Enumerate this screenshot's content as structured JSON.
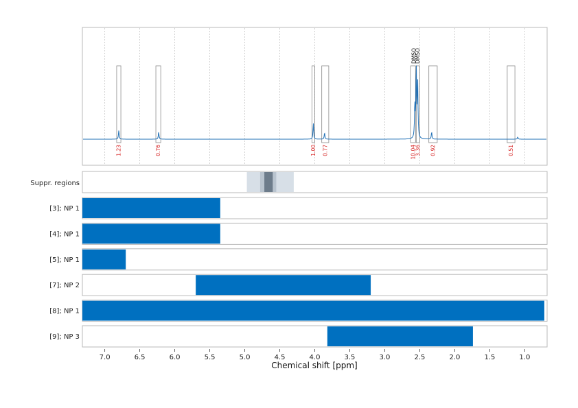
{
  "chart_data": {
    "type": "nmr_spectrum_with_ranges",
    "xlabel": "Chemical shift [ppm]",
    "x_axis": {
      "range": [
        7.32,
        0.68
      ],
      "reversed": true,
      "ticks": [
        7.0,
        6.5,
        6.0,
        5.5,
        5.0,
        4.5,
        4.0,
        3.5,
        3.0,
        2.5,
        2.0,
        1.5,
        1.0
      ],
      "tick_labels": [
        "7.0",
        "6.5",
        "6.0",
        "5.5",
        "5.0",
        "4.5",
        "4.0",
        "3.5",
        "3.0",
        "2.5",
        "2.0",
        "1.5",
        "1.0"
      ]
    },
    "grid": true,
    "colors": {
      "spectrum": "#1f6fb5",
      "range_bar": "#0070c0",
      "integral_label": "#d62020",
      "suppr_light": "#d7dfe7",
      "suppr_mid": "#b9c4cf",
      "suppr_dark": "#6d7c8b"
    },
    "spectrum": {
      "peaks": [
        {
          "ppm": 6.8,
          "height": 0.12
        },
        {
          "ppm": 6.23,
          "height": 0.1
        },
        {
          "ppm": 4.02,
          "height": 0.22
        },
        {
          "ppm": 3.86,
          "height": 0.09
        },
        {
          "ppm": 2.57,
          "height": 0.45
        },
        {
          "ppm": 2.55,
          "height": 0.98
        },
        {
          "ppm": 2.53,
          "height": 0.78
        },
        {
          "ppm": 2.33,
          "height": 0.1
        },
        {
          "ppm": 1.1,
          "height": 0.03
        }
      ],
      "integrals": [
        {
          "from": 6.83,
          "to": 6.77,
          "label": "1.23"
        },
        {
          "from": 6.27,
          "to": 6.2,
          "label": "0.76"
        },
        {
          "from": 4.04,
          "to": 4.0,
          "label": "1.00"
        },
        {
          "from": 3.9,
          "to": 3.8,
          "label": "0.77"
        },
        {
          "from": 2.63,
          "to": 2.56,
          "label": "10.04"
        },
        {
          "from": 2.55,
          "to": 2.5,
          "label": "3.36"
        },
        {
          "from": 2.37,
          "to": 2.25,
          "label": "0.92"
        },
        {
          "from": 1.25,
          "to": 1.14,
          "label": "0.51"
        }
      ],
      "peak_labels": [
        {
          "ppm": 2.585,
          "text": "DMSO"
        },
        {
          "ppm": 2.53,
          "text": "DMSO"
        }
      ]
    },
    "suppressed_regions": {
      "label": "Suppr. regions",
      "bands": [
        {
          "from": 4.97,
          "to": 4.3,
          "shade": "light"
        },
        {
          "from": 4.78,
          "to": 4.55,
          "shade": "mid"
        },
        {
          "from": 4.72,
          "to": 4.6,
          "shade": "dark"
        }
      ]
    },
    "ranges": [
      {
        "label": "[3]; NP 1",
        "from": 7.32,
        "to": 5.35
      },
      {
        "label": "[4]; NP 1",
        "from": 7.32,
        "to": 5.35
      },
      {
        "label": "[5]; NP 1",
        "from": 7.32,
        "to": 6.7
      },
      {
        "label": "[7]; NP 2",
        "from": 5.7,
        "to": 3.2
      },
      {
        "label": "[8]; NP 1",
        "from": 7.32,
        "to": 0.72
      },
      {
        "label": "[9]; NP 3",
        "from": 3.82,
        "to": 1.74
      }
    ]
  }
}
